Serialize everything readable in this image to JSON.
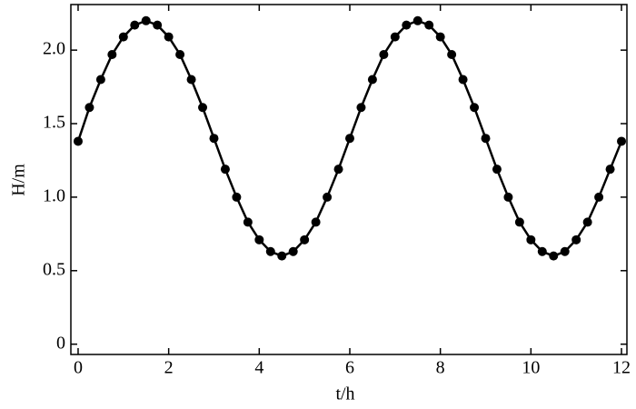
{
  "chart_data": {
    "type": "line",
    "xlabel": "t/h",
    "ylabel": "H/m",
    "x": [
      0,
      0.25,
      0.5,
      0.75,
      1,
      1.25,
      1.5,
      1.75,
      2,
      2.25,
      2.5,
      2.75,
      3,
      3.25,
      3.5,
      3.75,
      4,
      4.25,
      4.5,
      4.75,
      5,
      5.25,
      5.5,
      5.75,
      6,
      6.25,
      6.5,
      6.75,
      7,
      7.25,
      7.5,
      7.75,
      8,
      8.25,
      8.5,
      8.75,
      9,
      9.25,
      9.5,
      9.75,
      10,
      10.25,
      10.5,
      10.75,
      11,
      11.25,
      11.5,
      11.75,
      12
    ],
    "series": [
      {
        "color": "#000000",
        "values": [
          1.38,
          1.61,
          1.8,
          1.97,
          2.09,
          2.17,
          2.2,
          2.17,
          2.09,
          1.97,
          1.8,
          1.61,
          1.4,
          1.19,
          1.0,
          0.83,
          0.71,
          0.63,
          0.6,
          0.63,
          0.71,
          0.83,
          1.0,
          1.19,
          1.4,
          1.61,
          1.8,
          1.97,
          2.09,
          2.17,
          2.2,
          2.17,
          2.09,
          1.97,
          1.8,
          1.61,
          1.4,
          1.19,
          1.0,
          0.83,
          0.71,
          0.63,
          0.6,
          0.63,
          0.71,
          0.83,
          1.0,
          1.19,
          1.38
        ]
      }
    ],
    "xlim": [
      -0.16,
      12.12
    ],
    "ylim": [
      -0.07,
      2.31
    ],
    "xticks": [
      0,
      2,
      4,
      6,
      8,
      10,
      12
    ],
    "yticks": [
      0,
      0.5,
      {
        "value": 1,
        "label": "1.0"
      },
      1.5,
      {
        "value": 2,
        "label": "2.0"
      }
    ],
    "markers": true
  }
}
